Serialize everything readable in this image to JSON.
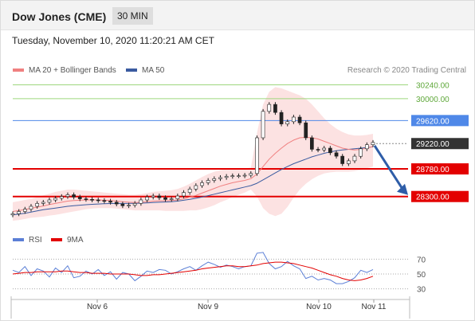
{
  "header": {
    "title": "Dow Jones (CME)",
    "period": "30 MIN"
  },
  "datetime": "Tuesday, November 10, 2020 11:20:21 AM CET",
  "legend": {
    "ma20": "MA 20 + Bollinger Bands",
    "ma50": "MA 50",
    "credit": "Research © 2020 Trading Central"
  },
  "rsi_legend": {
    "rsi": "RSI",
    "ma9": "9MA"
  },
  "colors": {
    "ma20": "#f08080",
    "ma50": "#3a5ba0",
    "support": "#e30000",
    "pivot": "#4f88e8",
    "resistance": "#9ed67e",
    "current": "#333333",
    "rsi": "#5b7fd6",
    "rsi_ma": "#e30000",
    "band": "#fbd5d5"
  },
  "chart_data": {
    "type": "line",
    "title": "",
    "xlabel": "",
    "ylabel": "",
    "ylim": [
      27950,
      30400
    ],
    "x_ticks": [
      "Nov 6",
      "Nov 9",
      "Nov 10",
      "Nov 11"
    ],
    "levels": [
      {
        "value": 30240,
        "label": "30240.00",
        "kind": "resistance"
      },
      {
        "value": 30000,
        "label": "30000.00",
        "kind": "resistance"
      },
      {
        "value": 29620,
        "label": "29620.00",
        "kind": "pivot"
      },
      {
        "value": 29220,
        "label": "29220.00",
        "kind": "current"
      },
      {
        "value": 28780,
        "label": "28780.00",
        "kind": "support"
      },
      {
        "value": 28300,
        "label": "28300.00",
        "kind": "support"
      }
    ],
    "price_close": [
      28000,
      28040,
      28080,
      28130,
      28180,
      28200,
      28240,
      28270,
      28300,
      28330,
      28290,
      28260,
      28250,
      28240,
      28230,
      28220,
      28200,
      28170,
      28140,
      28150,
      28180,
      28240,
      28290,
      28310,
      28280,
      28250,
      28260,
      28310,
      28370,
      28430,
      28490,
      28540,
      28580,
      28610,
      28630,
      28650,
      28660,
      28660,
      28670,
      28700,
      29320,
      29780,
      29900,
      29760,
      29560,
      29600,
      29680,
      29580,
      29320,
      29120,
      29110,
      29140,
      29060,
      29000,
      28870,
      28920,
      29000,
      29130,
      29200,
      29240
    ],
    "ma20": [
      28040,
      28055,
      28075,
      28095,
      28115,
      28135,
      28160,
      28180,
      28200,
      28220,
      28230,
      28235,
      28240,
      28240,
      28240,
      28235,
      28230,
      28220,
      28210,
      28200,
      28195,
      28200,
      28210,
      28220,
      28225,
      28225,
      28230,
      28240,
      28260,
      28290,
      28320,
      28360,
      28400,
      28440,
      28480,
      28510,
      28540,
      28560,
      28580,
      28610,
      28690,
      28820,
      28950,
      29050,
      29140,
      29220,
      29280,
      29320,
      29330,
      29320,
      29300,
      29260,
      29220,
      29180,
      29140,
      29120,
      29110,
      29120,
      29140,
      29170
    ],
    "ma50": [
      27980,
      27995,
      28010,
      28030,
      28050,
      28070,
      28085,
      28100,
      28115,
      28130,
      28140,
      28150,
      28158,
      28165,
      28170,
      28175,
      28178,
      28180,
      28180,
      28180,
      28182,
      28185,
      28190,
      28195,
      28200,
      28205,
      28210,
      28220,
      28235,
      28250,
      28270,
      28290,
      28315,
      28340,
      28365,
      28390,
      28415,
      28440,
      28465,
      28490,
      28530,
      28590,
      28650,
      28710,
      28770,
      28820,
      28870,
      28910,
      28950,
      28990,
      29020,
      29050,
      29075,
      29095,
      29110,
      29120,
      29130,
      29140,
      29150,
      29165
    ],
    "band_upper": [
      28200,
      28220,
      28240,
      28260,
      28290,
      28320,
      28350,
      28380,
      28400,
      28420,
      28420,
      28410,
      28400,
      28390,
      28380,
      28370,
      28360,
      28350,
      28340,
      28330,
      28330,
      28340,
      28360,
      28380,
      28390,
      28400,
      28410,
      28430,
      28470,
      28520,
      28580,
      28640,
      28690,
      28730,
      28760,
      28780,
      28790,
      28790,
      28790,
      28800,
      29400,
      29900,
      30120,
      30200,
      30180,
      30140,
      30100,
      30060,
      30000,
      29900,
      29780,
      29660,
      29560,
      29480,
      29420,
      29380,
      29360,
      29360,
      29370,
      29390
    ],
    "band_lower": [
      27880,
      27890,
      27910,
      27930,
      27940,
      27950,
      27970,
      27980,
      28000,
      28020,
      28040,
      28060,
      28080,
      28090,
      28100,
      28100,
      28100,
      28090,
      28080,
      28070,
      28060,
      28060,
      28060,
      28060,
      28060,
      28050,
      28050,
      28050,
      28050,
      28060,
      28060,
      28080,
      28110,
      28150,
      28200,
      28240,
      28290,
      28330,
      28370,
      28420,
      28300,
      28100,
      28000,
      27960,
      28000,
      28120,
      28280,
      28420,
      28520,
      28600,
      28660,
      28700,
      28720,
      28730,
      28730,
      28730,
      28740,
      28760,
      28790,
      28820
    ],
    "rsi": {
      "ylim": [
        20,
        80
      ],
      "levels": [
        70,
        50,
        30
      ],
      "rsi_values": [
        55,
        52,
        60,
        48,
        57,
        54,
        46,
        58,
        52,
        61,
        45,
        47,
        54,
        50,
        56,
        48,
        53,
        43,
        52,
        50,
        41,
        47,
        54,
        52,
        56,
        55,
        50,
        53,
        57,
        60,
        55,
        61,
        66,
        63,
        59,
        62,
        60,
        57,
        60,
        61,
        78,
        79,
        64,
        57,
        60,
        67,
        61,
        57,
        44,
        47,
        42,
        44,
        42,
        37,
        37,
        40,
        45,
        55,
        52,
        56
      ],
      "ma9_values": [
        50,
        51,
        52,
        52,
        53,
        53,
        53,
        53,
        54,
        54,
        53,
        52,
        52,
        51,
        51,
        51,
        50,
        50,
        50,
        50,
        49,
        48,
        48,
        49,
        49,
        50,
        51,
        52,
        53,
        54,
        55,
        57,
        58,
        59,
        60,
        61,
        61,
        60,
        60,
        61,
        62,
        64,
        65,
        66,
        66,
        65,
        64,
        62,
        60,
        58,
        55,
        52,
        49,
        47,
        44,
        42,
        41,
        42,
        44,
        47
      ]
    }
  }
}
